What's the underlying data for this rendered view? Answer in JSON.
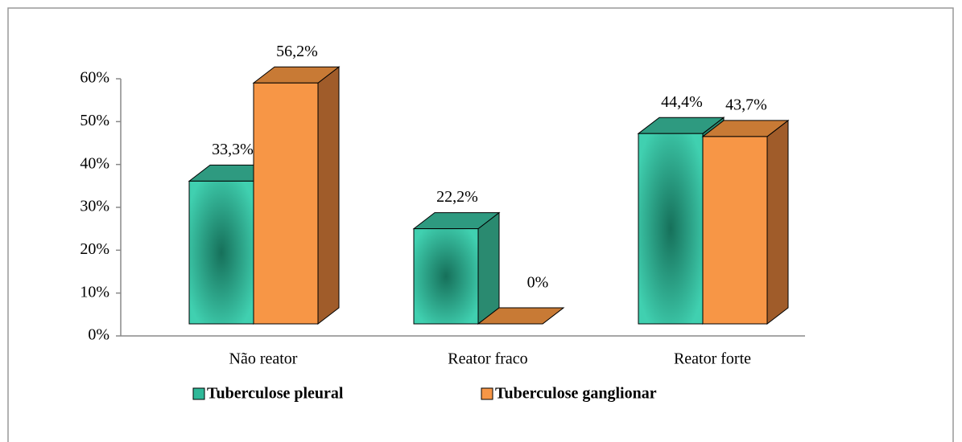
{
  "chart_data": {
    "type": "bar3d",
    "categories": [
      "Não reator",
      "Reator fraco",
      "Reator forte"
    ],
    "series": [
      {
        "name": "Tuberculose pleural",
        "color": "#40d0b0",
        "values": [
          33.3,
          22.2,
          44.4
        ],
        "value_labels": [
          "33,3%",
          "22,2%",
          "44,4%"
        ]
      },
      {
        "name": "Tuberculose ganglionar",
        "color": "#f79646",
        "values": [
          56.2,
          0,
          43.7
        ],
        "value_labels": [
          "56,2%",
          "0%",
          "43,7%"
        ]
      }
    ],
    "ylim": [
      0,
      60
    ],
    "yticks": [
      {
        "value": 0,
        "label": "0%"
      },
      {
        "value": 10,
        "label": "10%"
      },
      {
        "value": 20,
        "label": "20%"
      },
      {
        "value": 30,
        "label": "30%"
      },
      {
        "value": 40,
        "label": "40%"
      },
      {
        "value": 50,
        "label": "50%"
      },
      {
        "value": 60,
        "label": "60%"
      }
    ],
    "legend": "bottom"
  }
}
